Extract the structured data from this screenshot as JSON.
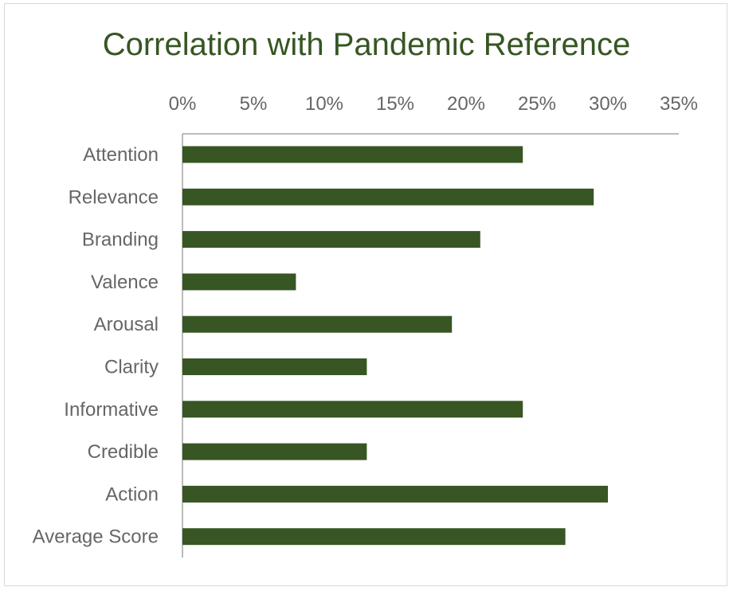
{
  "chart_data": {
    "type": "bar",
    "orientation": "horizontal",
    "title": "Correlation with Pandemic Reference",
    "xlabel": "",
    "ylabel": "",
    "xlim": [
      0,
      0.35
    ],
    "x_tick_values": [
      0,
      0.05,
      0.1,
      0.15,
      0.2,
      0.25,
      0.3,
      0.35
    ],
    "x_tick_labels": [
      "0%",
      "5%",
      "10%",
      "15%",
      "20%",
      "25%",
      "30%",
      "35%"
    ],
    "x_axis_position": "top",
    "grid": false,
    "legend": "none",
    "categories": [
      "Attention",
      "Relevance",
      "Branding",
      "Valence",
      "Arousal",
      "Clarity",
      "Informative",
      "Credible",
      "Action",
      "Average Score"
    ],
    "values": [
      0.24,
      0.29,
      0.21,
      0.08,
      0.19,
      0.13,
      0.24,
      0.13,
      0.3,
      0.27
    ],
    "colors": {
      "bar": "#375623",
      "title": "#375623",
      "text": "#666666",
      "axis": "#a6a6a6"
    }
  }
}
